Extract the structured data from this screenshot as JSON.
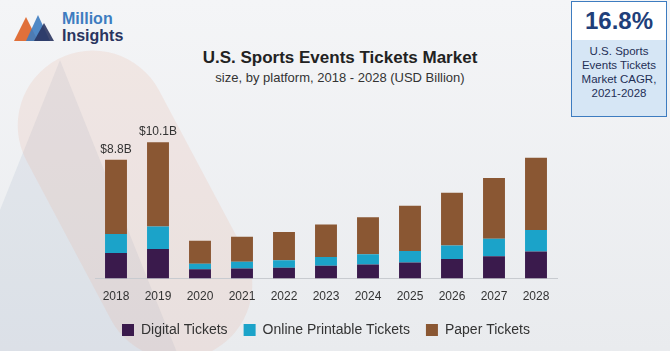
{
  "logo": [
    "Million",
    "Insights"
  ],
  "callout": {
    "value": "16.8%",
    "label_lines": [
      "U.S. Sports",
      "Events Tickets",
      "Market CAGR,",
      "2021-2028"
    ]
  },
  "chart_data": {
    "type": "bar",
    "title": "U.S. Sports Events Tickets Market",
    "subtitle": "size, by platform, 2018 - 2028 (USD Billion)",
    "categories": [
      "2018",
      "2019",
      "2020",
      "2021",
      "2022",
      "2023",
      "2024",
      "2025",
      "2026",
      "2027",
      "2028"
    ],
    "series": [
      {
        "name": "Digital Tickets",
        "color": "#3a1a4c",
        "values": [
          1.9,
          2.2,
          0.7,
          0.75,
          0.8,
          0.95,
          1.05,
          1.2,
          1.45,
          1.65,
          2.0
        ]
      },
      {
        "name": "Online Printable Tickets",
        "color": "#1ba3c9",
        "values": [
          1.4,
          1.65,
          0.4,
          0.5,
          0.55,
          0.65,
          0.75,
          0.85,
          1.0,
          1.3,
          1.6
        ]
      },
      {
        "name": "Paper Tickets",
        "color": "#8a5733",
        "values": [
          5.5,
          6.25,
          1.7,
          1.85,
          2.1,
          2.4,
          2.75,
          3.35,
          3.9,
          4.5,
          5.35
        ]
      }
    ],
    "stacked": true,
    "ylim": [
      0,
      11
    ],
    "tick_labels": "x",
    "grid": false,
    "legend": "bottom",
    "annotations": [
      {
        "category": "2018",
        "text": "$8.8B"
      },
      {
        "category": "2019",
        "text": "$10.1B"
      }
    ]
  }
}
